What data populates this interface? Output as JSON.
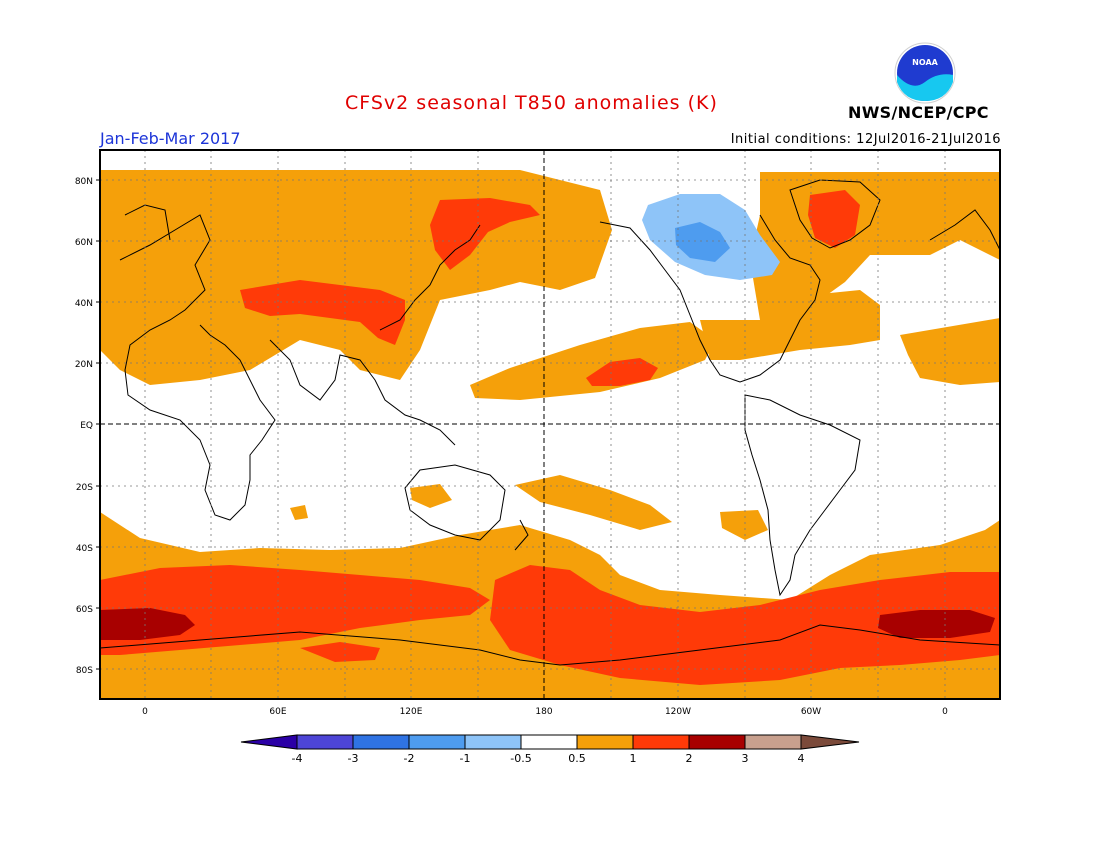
{
  "header": {
    "title": "CFSv2 seasonal T850 anomalies (K)",
    "season": "Jan-Feb-Mar 2017",
    "initial_conditions": "Initial conditions: 12Jul2016-21Jul2016",
    "organization": "NWS/NCEP/CPC",
    "logo_text": "NOAA"
  },
  "map": {
    "lat_labels": [
      "80N",
      "60N",
      "40N",
      "20N",
      "EQ",
      "20S",
      "40S",
      "60S",
      "80S"
    ],
    "lon_labels": [
      "0",
      "60E",
      "120E",
      "180",
      "120W",
      "60W",
      "0"
    ]
  },
  "colorbar": {
    "tick_labels": [
      "-4",
      "-3",
      "-2",
      "-1",
      "-0.5",
      "0.5",
      "1",
      "2",
      "3",
      "4"
    ],
    "colors": [
      "#2b00a6",
      "#4d45d6",
      "#2f73e3",
      "#4e9cef",
      "#8ec4f8",
      "#ffffff",
      "#f5a00a",
      "#ff3a08",
      "#a80000",
      "#c8a08e",
      "#7b4a3a"
    ]
  },
  "colors": {
    "coast": "#000000",
    "orange_1_2": "#f5a00a",
    "red_2_3": "#ff3a08",
    "darkred_3_4": "#a80000",
    "lightblue_neg": "#8ec4f8",
    "blue_neg": "#4e9cef"
  }
}
